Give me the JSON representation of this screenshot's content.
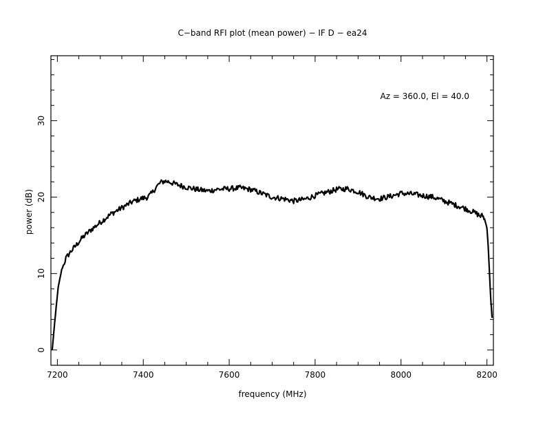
{
  "chart_data": {
    "type": "line",
    "title": "C−band RFI plot (mean power) − IF D − ea24",
    "xlabel": "frequency (MHz)",
    "ylabel": "power (dB)",
    "annotation": "Az = 360.0, El = 40.0",
    "xlim": [
      7185,
      8215
    ],
    "ylim": [
      -2,
      38.5
    ],
    "x_ticks": [
      7200,
      7400,
      7600,
      7800,
      8000,
      8200
    ],
    "y_ticks": [
      0,
      10,
      20,
      30
    ],
    "x_minor_step": 50,
    "y_minor_step": 2,
    "grid": false,
    "series": [
      {
        "name": "",
        "color": "#000000",
        "x": [
          7188,
          7192,
          7197,
          7202,
          7210,
          7220,
          7230,
          7245,
          7260,
          7280,
          7300,
          7325,
          7350,
          7375,
          7395,
          7410,
          7420,
          7430,
          7440,
          7450,
          7460,
          7475,
          7500,
          7525,
          7550,
          7570,
          7600,
          7625,
          7650,
          7675,
          7700,
          7725,
          7750,
          7775,
          7800,
          7825,
          7850,
          7875,
          7900,
          7925,
          7950,
          7975,
          8000,
          8025,
          8050,
          8075,
          8100,
          8125,
          8150,
          8170,
          8180,
          8185,
          8190,
          8193,
          8196,
          8200,
          8203,
          8206,
          8209,
          8212
        ],
        "values": [
          0.0,
          2.5,
          5.5,
          8.2,
          10.5,
          12.0,
          12.8,
          13.8,
          14.8,
          15.8,
          16.7,
          17.8,
          18.6,
          19.4,
          19.8,
          20.0,
          20.5,
          21.3,
          21.9,
          22.1,
          22.0,
          21.7,
          21.3,
          21.0,
          20.8,
          21.0,
          21.1,
          21.2,
          21.0,
          20.5,
          20.0,
          19.8,
          19.5,
          19.7,
          20.2,
          20.6,
          21.0,
          21.1,
          20.7,
          20.0,
          19.8,
          20.1,
          20.5,
          20.4,
          20.2,
          20.0,
          19.5,
          19.0,
          18.5,
          18.0,
          17.7,
          17.5,
          17.6,
          17.3,
          16.8,
          16.0,
          13.5,
          10.0,
          6.5,
          4.2
        ]
      }
    ]
  }
}
